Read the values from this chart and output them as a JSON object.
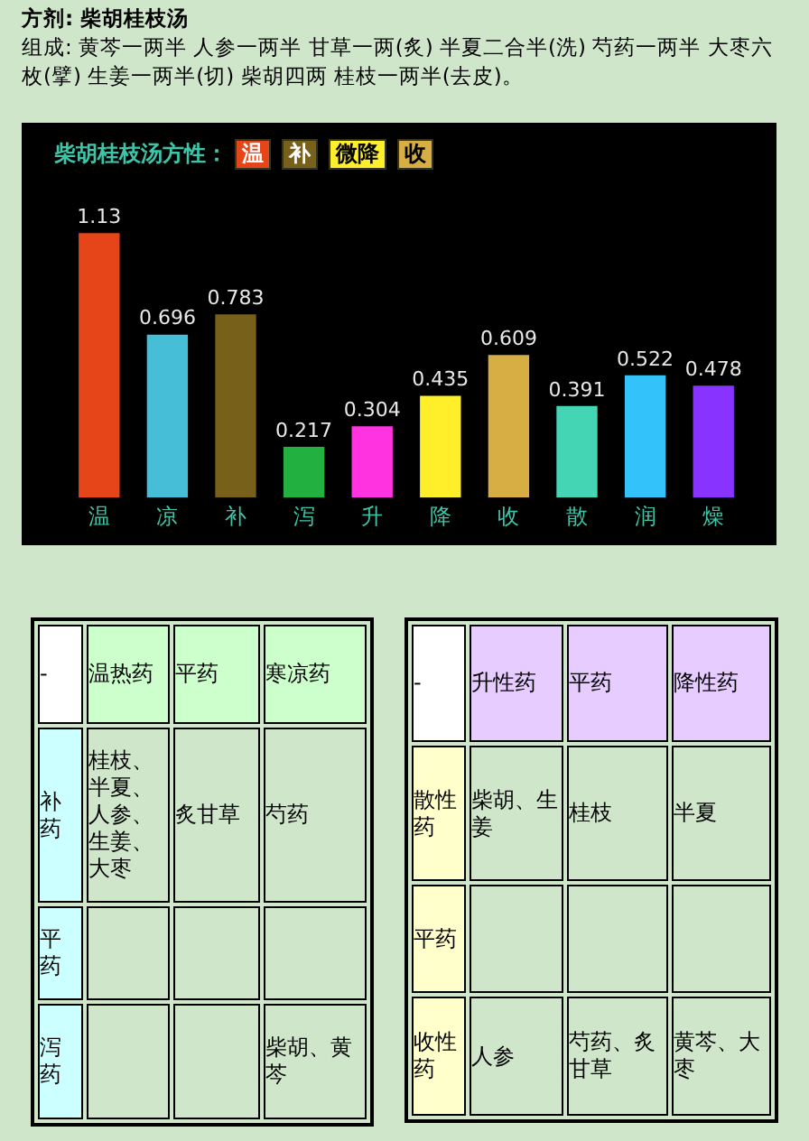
{
  "chart_data": [
    {
      "type": "bar",
      "title": "方剂: 柴胡桂枝汤",
      "subtitle": "组成: 黄芩一两半  人参一两半  甘草一两(炙)  半夏二合半(洗)  芍药一两半  大枣六枚(擘)  生姜一两半(切)  柴胡四两  桂枝一两半(去皮)。",
      "annotations": [
        "柴胡桂枝汤方性：",
        "温",
        "补",
        "微降",
        "收"
      ],
      "categories": [
        "温",
        "凉",
        "补",
        "泻",
        "升",
        "降",
        "收",
        "散",
        "润",
        "燥"
      ],
      "values": [
        1.13,
        0.696,
        0.783,
        0.217,
        0.304,
        0.435,
        0.609,
        0.391,
        0.522,
        0.478
      ],
      "colors": [
        "#e64519",
        "#46bed8",
        "#77601a",
        "#22b041",
        "#ff33e0",
        "#ffee2a",
        "#d6ae44",
        "#44d6b4",
        "#33c3fa",
        "#8833ff"
      ],
      "data_labels": true,
      "legend": false
    },
    {
      "type": "other",
      "annotations": [
        "-"
      ],
      "categories": [
        "温热药",
        "平药",
        "寒凉药"
      ],
      "y_categories": [
        "补药",
        "平药",
        "泻药"
      ],
      "cell_labels": [
        [
          "桂枝、半夏、人参、生姜、大枣",
          "炙甘草",
          "芍药"
        ],
        [
          null,
          null,
          null
        ],
        [
          null,
          null,
          "柴胡、黄芩"
        ]
      ]
    },
    {
      "type": "other",
      "annotations": [
        "-"
      ],
      "categories": [
        "升性药",
        "平药",
        "降性药"
      ],
      "y_categories": [
        "散性药",
        "平药",
        "收性药"
      ],
      "cell_labels": [
        [
          "柴胡、生姜",
          "桂枝",
          "半夏"
        ],
        [
          null,
          null,
          null
        ],
        [
          "人参",
          "芍药、炙甘草",
          "黄芩、大枣"
        ]
      ]
    }
  ]
}
